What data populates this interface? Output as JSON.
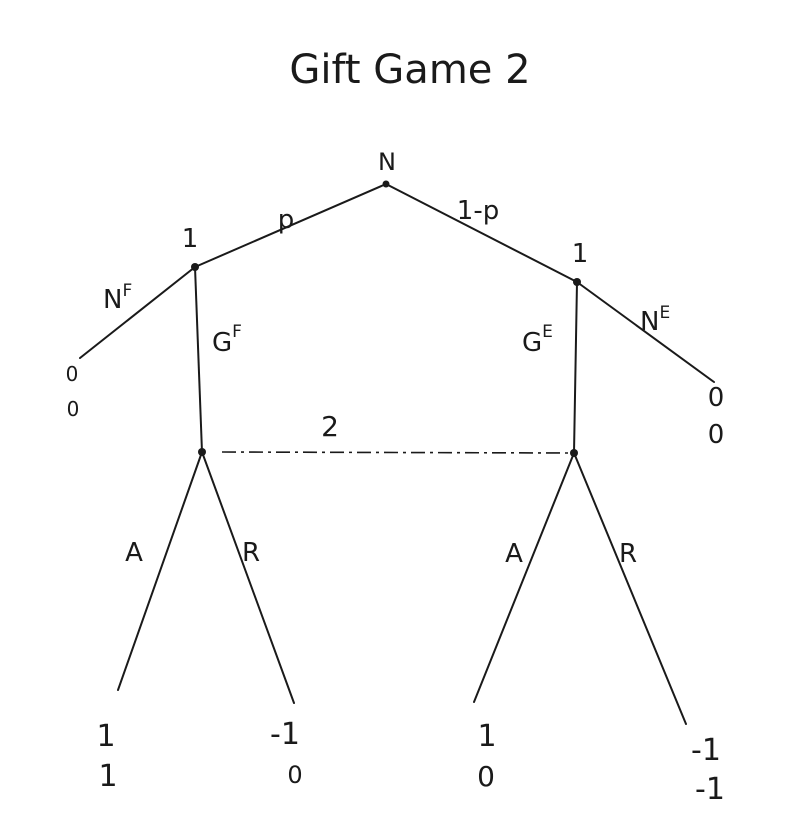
{
  "title": "Gift Game 2",
  "nodes": {
    "nature": "N",
    "player1_left": "1",
    "player1_right": "1",
    "player2_info_set": "2"
  },
  "branches": {
    "nature_left": "p",
    "nature_right": "1-p",
    "left_not_give": "N",
    "left_not_give_sup": "F",
    "left_give": "G",
    "left_give_sup": "F",
    "right_give": "G",
    "right_give_sup": "E",
    "right_not_give": "N",
    "right_not_give_sup": "E",
    "left_accept": "A",
    "left_reject": "R",
    "right_accept": "A",
    "right_reject": "R"
  },
  "payoffs": {
    "left_not_give": [
      "0",
      "0"
    ],
    "right_not_give": [
      "0",
      "0"
    ],
    "left_accept": [
      "1",
      "1"
    ],
    "left_reject": [
      "-1",
      "0"
    ],
    "right_accept": [
      "1",
      "0"
    ],
    "right_reject": [
      "-1",
      "-1"
    ]
  }
}
